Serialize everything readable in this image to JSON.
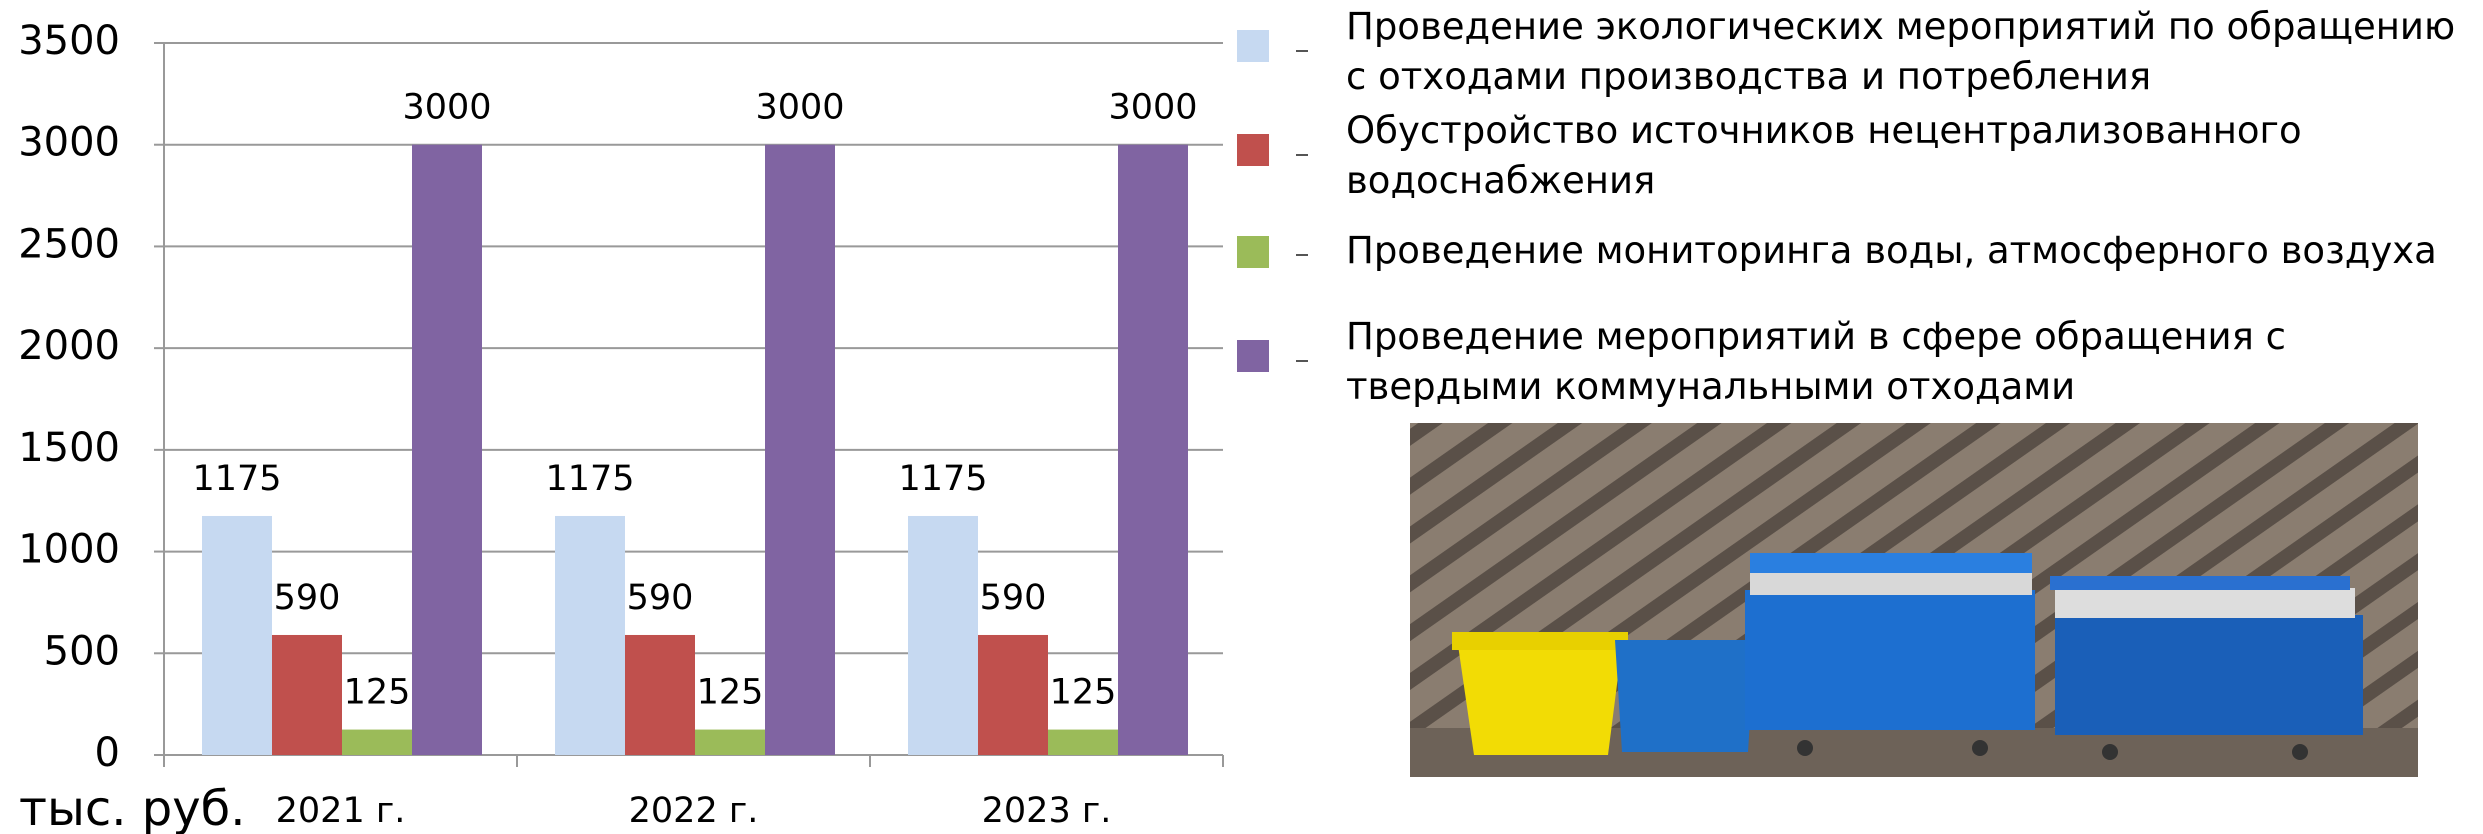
{
  "chart_data": {
    "type": "bar",
    "categories": [
      "2021 г.",
      "2022 г.",
      "2023 г."
    ],
    "series": [
      {
        "name": "Проведение экологических мероприятий по обращению с отходами производства и потребления",
        "color": "#c6d9f1",
        "values": [
          1175,
          1175,
          1175
        ]
      },
      {
        "name": "Обустройство источников нецентрализованного водоснабжения",
        "color": "#c0504d",
        "values": [
          590,
          590,
          590
        ]
      },
      {
        "name": "Проведение мониторинга воды, атмосферного воздуха",
        "color": "#9bbb59",
        "values": [
          125,
          125,
          125
        ]
      },
      {
        "name": "Проведение мероприятий в сфере обращения с твердыми коммунальными отходами",
        "color": "#8064a2",
        "values": [
          3000,
          3000,
          3000
        ]
      }
    ],
    "y_axis_label": "тыс. руб.",
    "ylim": [
      0,
      3500
    ],
    "yticks": [
      0,
      500,
      1000,
      1500,
      2000,
      2500,
      3000,
      3500
    ],
    "grid": true,
    "legend": "right"
  }
}
